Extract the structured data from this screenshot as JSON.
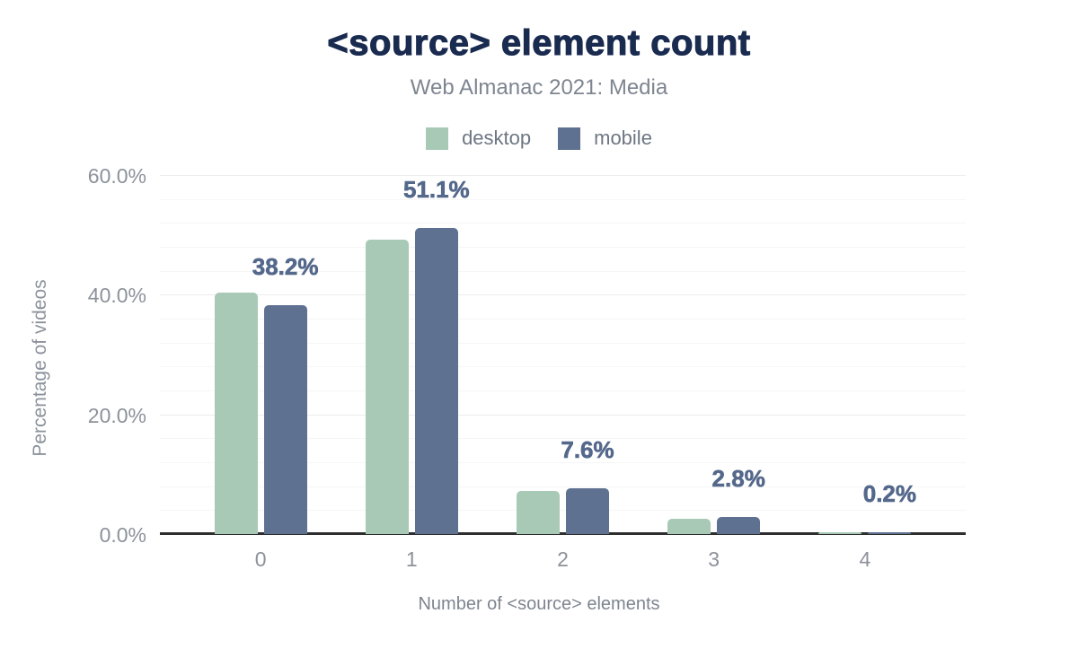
{
  "title": "<source> element count",
  "subtitle": "Web Almanac 2021: Media",
  "legend": {
    "items": [
      {
        "label": "desktop",
        "color": "#a8c9b6"
      },
      {
        "label": "mobile",
        "color": "#5f7190"
      }
    ]
  },
  "colors": {
    "title": "#1a2b50",
    "subtitle": "#7e8590",
    "desktop_bar": "#a8c9b6",
    "mobile_bar": "#5f7190",
    "value_label": "#54688c",
    "axis_text": "#8c929b",
    "baseline": "#2e2e2e",
    "gridline_major": "#ececec",
    "gridline_minor": "#f6f6f6"
  },
  "chart_data": {
    "type": "bar",
    "categories": [
      "0",
      "1",
      "2",
      "3",
      "4"
    ],
    "series": [
      {
        "name": "desktop",
        "color": "#a8c9b6",
        "values": [
          40.3,
          49.2,
          7.2,
          2.6,
          0.2
        ]
      },
      {
        "name": "mobile",
        "color": "#5f7190",
        "values": [
          38.2,
          51.1,
          7.6,
          2.8,
          0.2
        ]
      }
    ],
    "value_labels": [
      "38.2%",
      "51.1%",
      "7.6%",
      "2.8%",
      "0.2%"
    ],
    "value_labels_refer_to": "mobile",
    "title": "<source> element count",
    "subtitle": "Web Almanac 2021: Media",
    "xlabel": "Number of <source> elements",
    "ylabel": "Percentage of videos",
    "y_ticks": [
      {
        "pct": 0,
        "label": "0.0%"
      },
      {
        "pct": 20,
        "label": "20.0%"
      },
      {
        "pct": 40,
        "label": "40.0%"
      },
      {
        "pct": 60,
        "label": "60.0%"
      }
    ],
    "ylim": [
      0,
      63
    ],
    "grid": {
      "major_step_pct": 20,
      "minor_step_pct": 4,
      "max_line_pct": 60
    },
    "legend_position": "top"
  }
}
